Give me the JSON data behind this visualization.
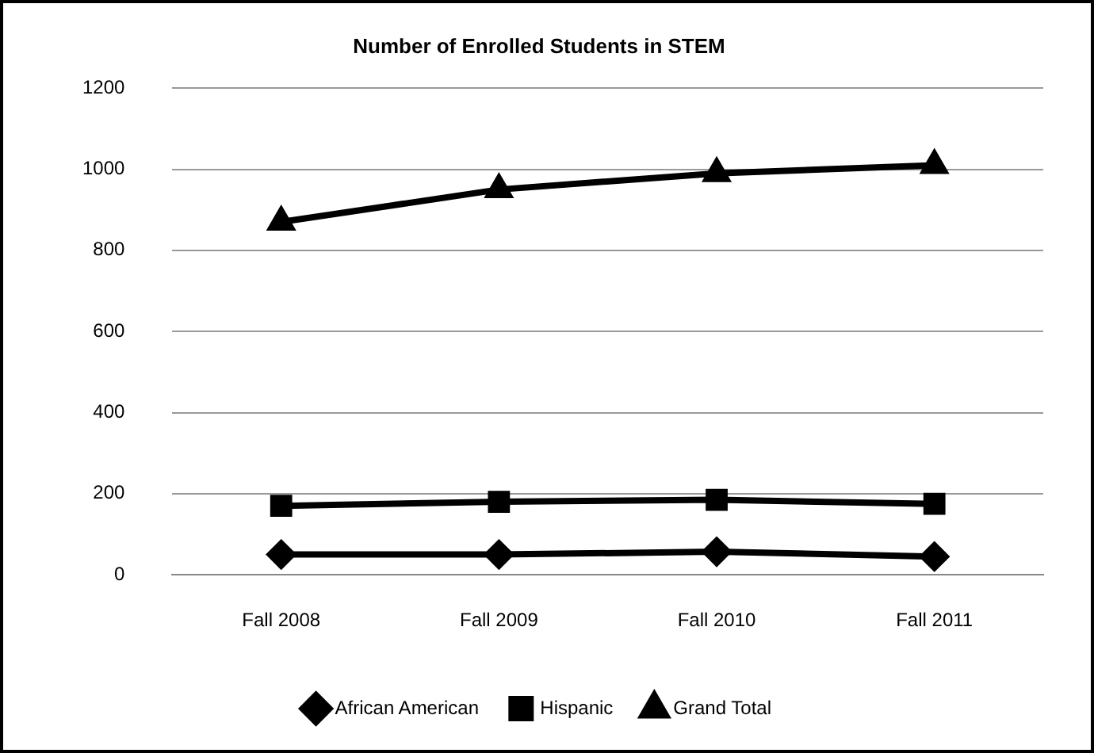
{
  "chart_data": {
    "type": "line",
    "title": "Number of Enrolled Students in STEM",
    "categories": [
      "Fall 2008",
      "Fall 2009",
      "Fall 2010",
      "Fall 2011"
    ],
    "series": [
      {
        "name": "African American",
        "color": "#000000",
        "marker": "diamond",
        "values": [
          50,
          50,
          57,
          45
        ]
      },
      {
        "name": "Hispanic",
        "color": "#000000",
        "marker": "square",
        "values": [
          170,
          180,
          185,
          175
        ]
      },
      {
        "name": "Grand Total",
        "color": "#000000",
        "marker": "triangle",
        "values": [
          870,
          950,
          990,
          1010
        ]
      }
    ],
    "ylim": [
      0,
      1200
    ],
    "yticks": [
      0,
      200,
      400,
      600,
      800,
      1000,
      1200
    ],
    "grid": "y",
    "legend": "bottom",
    "line_style": "solid"
  }
}
